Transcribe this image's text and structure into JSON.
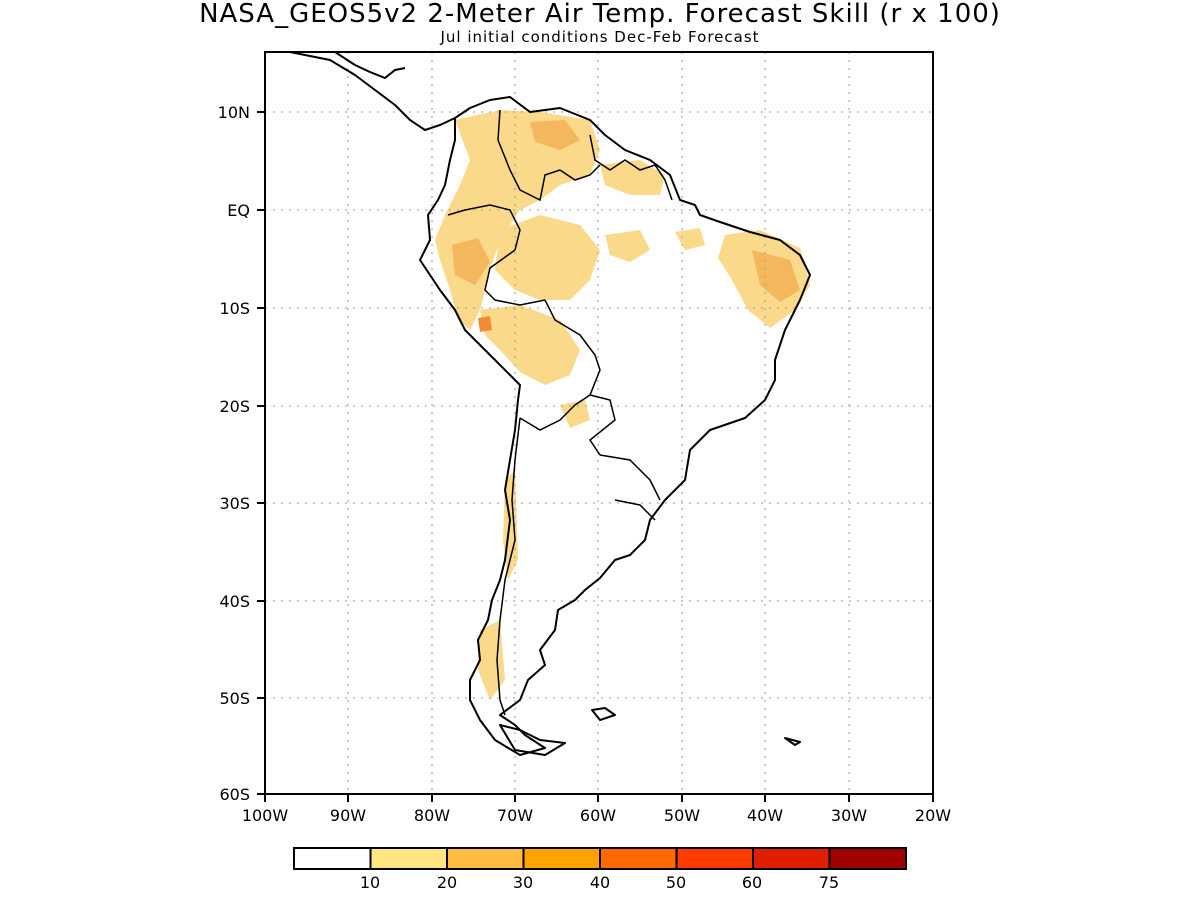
{
  "title": "NASA_GEOS5v2 2-Meter Air Temp. Forecast Skill (r x 100)",
  "subtitle": "Jul initial conditions  Dec-Feb Forecast",
  "map": {
    "region": "South America",
    "lon_range": [
      -100,
      -20
    ],
    "lat_range": [
      -60,
      15
    ],
    "lat_ticks": [
      "10N",
      "EQ",
      "10S",
      "20S",
      "30S",
      "40S",
      "50S",
      "60S"
    ],
    "lon_ticks": [
      "100W",
      "90W",
      "80W",
      "70W",
      "60W",
      "50W",
      "40W",
      "30W",
      "20W"
    ],
    "grid": "dotted"
  },
  "legend": {
    "labels": [
      "10",
      "20",
      "30",
      "40",
      "50",
      "60",
      "75"
    ],
    "colors": [
      "#ffffff",
      "#ffe680",
      "#ffbb40",
      "#ffa200",
      "#ff6a00",
      "#ff3c00",
      "#e01e00",
      "#a00000"
    ]
  }
}
